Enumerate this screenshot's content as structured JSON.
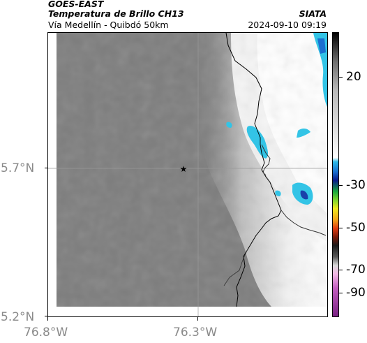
{
  "header": {
    "satellite": "GOES-EAST",
    "product": "Temperatura de Brillo CH13",
    "location": "Vía Medellín - Quibdó 50km",
    "source": "SIATA",
    "datetime": "2024-09-10 09:19"
  },
  "map": {
    "latitude_labels": [
      "5.7°N",
      "5.2°N"
    ],
    "longitude_labels": [
      "76.8°W",
      "76.3°W"
    ],
    "marker": "star-icon",
    "colors": {
      "background_gray": "#7d7d7d",
      "cloud_white": "#ffffff",
      "cold_cyan": "#33c4e6",
      "coldest_blue": "#1a3faa"
    }
  },
  "colorbar": {
    "labels": [
      "20",
      "-30",
      "-50",
      "-70",
      "-90"
    ]
  }
}
